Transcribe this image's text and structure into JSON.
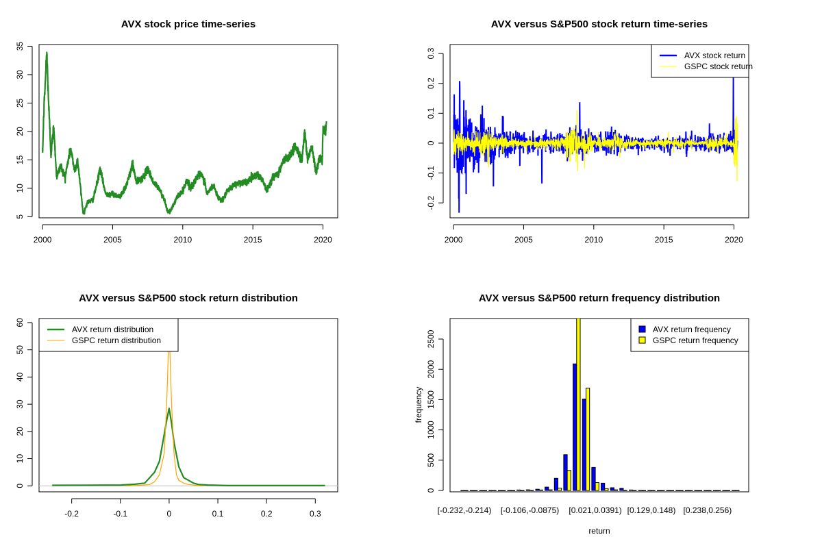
{
  "chart_data": [
    {
      "type": "line",
      "title": "AVX stock price time-series",
      "xlabel": "",
      "ylabel": "",
      "xlim": [
        1999.75,
        2021.05
      ],
      "ylim": [
        4.8,
        35.3
      ],
      "xticks": [
        2000,
        2005,
        2010,
        2015,
        2020
      ],
      "yticks": [
        5,
        10,
        15,
        20,
        25,
        30,
        35
      ],
      "color": "#228B22",
      "series": [
        {
          "name": "AVX price",
          "x": [
            2000.0,
            2000.1,
            2000.3,
            2000.45,
            2000.6,
            2000.8,
            2001.0,
            2001.3,
            2001.6,
            2002.0,
            2002.3,
            2002.5,
            2002.9,
            2003.2,
            2003.6,
            2003.9,
            2004.1,
            2004.5,
            2005.0,
            2005.5,
            2005.9,
            2006.3,
            2006.4,
            2006.7,
            2007.2,
            2007.5,
            2007.9,
            2008.3,
            2008.7,
            2008.9,
            2009.1,
            2009.6,
            2010.0,
            2010.3,
            2010.6,
            2011.0,
            2011.3,
            2011.6,
            2011.7,
            2012.2,
            2012.5,
            2012.8,
            2013.2,
            2013.6,
            2014.0,
            2014.5,
            2015.0,
            2015.3,
            2015.7,
            2016.0,
            2016.4,
            2016.8,
            2017.2,
            2017.6,
            2018.0,
            2018.3,
            2018.5,
            2018.7,
            2018.9,
            2019.2,
            2019.5,
            2019.8,
            2019.95,
            2020.0,
            2020.2,
            2020.25
          ],
          "y": [
            16,
            24,
            34,
            24,
            16,
            21,
            12,
            14,
            12,
            17,
            13,
            15,
            5.5,
            7.5,
            8,
            11,
            13.5,
            9,
            9,
            8.5,
            10,
            13,
            14.5,
            11,
            12,
            13.5,
            11,
            10,
            8,
            6,
            5.8,
            8.5,
            9.5,
            11.5,
            10,
            12,
            12.5,
            11,
            9,
            10.5,
            8.5,
            7.8,
            9.5,
            10.5,
            11,
            11,
            12,
            12.5,
            11.5,
            9.5,
            12,
            12.5,
            15,
            15.5,
            17.5,
            16,
            15,
            20,
            15,
            17.5,
            13,
            15.5,
            15,
            20.5,
            20.5,
            21.8
          ]
        }
      ]
    },
    {
      "type": "line",
      "title": "AVX versus S&P500 stock return time-series",
      "xlabel": "",
      "ylabel": "",
      "xlim": [
        1999.75,
        2021.05
      ],
      "ylim": [
        -0.25,
        0.33
      ],
      "xticks": [
        2000,
        2005,
        2010,
        2015,
        2020
      ],
      "yticks": [
        -0.2,
        -0.1,
        0.0,
        0.1,
        0.2,
        0.3
      ],
      "legend": {
        "position": "top-right",
        "entries": [
          "AVX stock return",
          "GSPC stock return"
        ]
      },
      "series": [
        {
          "name": "AVX stock return",
          "color": "#0000FF",
          "years": [
            2000,
            2001,
            2002,
            2003,
            2004,
            2005,
            2006,
            2007,
            2008,
            2009,
            2010,
            2011,
            2012,
            2013,
            2014,
            2015,
            2016,
            2017,
            2018,
            2019,
            2020
          ],
          "volatility": [
            0.06,
            0.05,
            0.04,
            0.03,
            0.02,
            0.016,
            0.02,
            0.02,
            0.03,
            0.025,
            0.02,
            0.025,
            0.015,
            0.012,
            0.012,
            0.015,
            0.015,
            0.012,
            0.02,
            0.018,
            0.03
          ],
          "extremes": [
            {
              "x": 2000.05,
              "y": 0.163
            },
            {
              "x": 2000.4,
              "y": -0.233
            },
            {
              "x": 2000.9,
              "y": -0.17
            },
            {
              "x": 2006.3,
              "y": -0.135
            },
            {
              "x": 2009.0,
              "y": 0.137
            },
            {
              "x": 2019.95,
              "y": 0.225
            }
          ]
        },
        {
          "name": "GSPC stock return",
          "color": "#FFFF00",
          "years": [
            2000,
            2001,
            2002,
            2003,
            2004,
            2005,
            2006,
            2007,
            2008,
            2009,
            2010,
            2011,
            2012,
            2013,
            2014,
            2015,
            2016,
            2017,
            2018,
            2019,
            2020
          ],
          "volatility": [
            0.025,
            0.022,
            0.025,
            0.015,
            0.01,
            0.008,
            0.009,
            0.012,
            0.035,
            0.02,
            0.012,
            0.018,
            0.009,
            0.007,
            0.007,
            0.01,
            0.01,
            0.005,
            0.012,
            0.01,
            0.05
          ],
          "extremes": [
            {
              "x": 2008.8,
              "y": 0.11
            },
            {
              "x": 2008.85,
              "y": -0.094
            },
            {
              "x": 2020.2,
              "y": 0.09
            },
            {
              "x": 2020.22,
              "y": -0.128
            }
          ]
        }
      ]
    },
    {
      "type": "line",
      "title": "AVX versus S&P500 stock return distribution",
      "xlabel": "",
      "ylabel": "",
      "xlim": [
        -0.267,
        0.346
      ],
      "ylim": [
        -2.2,
        61.5
      ],
      "xticks": [
        -0.2,
        -0.1,
        0.0,
        0.1,
        0.2,
        0.3
      ],
      "yticks": [
        0,
        10,
        20,
        30,
        40,
        50,
        60
      ],
      "legend": {
        "position": "top-left",
        "entries": [
          "AVX return distribution",
          "GSPC return distribution"
        ]
      },
      "series": [
        {
          "name": "AVX return distribution",
          "color": "#228B22",
          "x": [
            -0.24,
            -0.1,
            -0.07,
            -0.05,
            -0.04,
            -0.03,
            -0.02,
            -0.01,
            -0.005,
            0,
            0.005,
            0.01,
            0.02,
            0.03,
            0.04,
            0.05,
            0.06,
            0.08,
            0.12,
            0.32
          ],
          "y": [
            0.2,
            0.3,
            0.6,
            1,
            3,
            5,
            9,
            19,
            24,
            28.5,
            23,
            16,
            7,
            3,
            2,
            1,
            0.5,
            0.3,
            0.1,
            0.1
          ]
        },
        {
          "name": "GSPC return distribution",
          "color": "#FFA500",
          "x": [
            -0.09,
            -0.06,
            -0.04,
            -0.03,
            -0.02,
            -0.01,
            -0.005,
            0,
            0.005,
            0.01,
            0.015,
            0.02,
            0.03,
            0.04,
            0.06,
            0.07
          ],
          "y": [
            0,
            0.2,
            0.5,
            1.5,
            4,
            12,
            30,
            58,
            30,
            12,
            4,
            2,
            1,
            0.5,
            0.1,
            0
          ]
        }
      ]
    },
    {
      "type": "bar",
      "title": "AVX versus S&P500 return frequency distribution",
      "xlabel": "return",
      "ylabel": "frequency",
      "ylim": [
        0,
        2840
      ],
      "yticks": [
        0,
        500,
        1000,
        1500,
        2000,
        2500
      ],
      "bin_start": -0.232,
      "bin_width": 0.01812,
      "bin_count": 30,
      "shown_labels": [
        {
          "bin": 0,
          "label": "[-0.232,-0.214)"
        },
        {
          "bin": 7,
          "label": "[-0.106,-0.0875)"
        },
        {
          "bin": 14,
          "label": "[0.021,0.0391)"
        },
        {
          "bin": 20,
          "label": "[0.129,0.148)"
        },
        {
          "bin": 26,
          "label": "[0.238,0.256)"
        }
      ],
      "legend": {
        "position": "top-right",
        "entries": [
          "AVX return frequency",
          "GSPC return frequency"
        ]
      },
      "series": [
        {
          "name": "AVX return frequency",
          "color": "#0000FF",
          "values": [
            1,
            1,
            1,
            1,
            1,
            2,
            8,
            10,
            20,
            55,
            200,
            590,
            2090,
            1510,
            380,
            120,
            45,
            35,
            8,
            5,
            2,
            1,
            1,
            1,
            1,
            1,
            1,
            1,
            1,
            1
          ]
        },
        {
          "name": "GSPC return frequency",
          "color": "#FFFF00",
          "values": [
            0,
            0,
            0,
            0,
            0,
            0,
            1,
            3,
            8,
            10,
            40,
            330,
            2900,
            1690,
            130,
            30,
            10,
            3,
            2,
            1,
            0,
            0,
            0,
            0,
            0,
            0,
            0,
            0,
            0,
            0
          ]
        }
      ]
    }
  ]
}
